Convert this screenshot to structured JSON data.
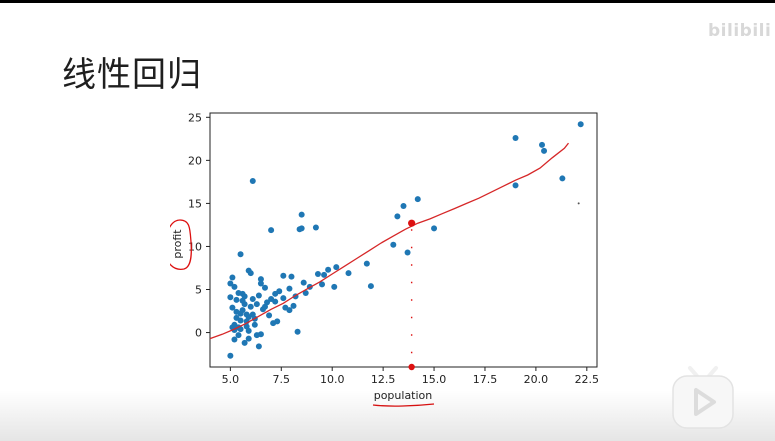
{
  "slide": {
    "title": "线性回归"
  },
  "watermark": {
    "text": "bilibili"
  },
  "chart_data": {
    "type": "scatter",
    "xlabel": "population",
    "ylabel": "profit",
    "xlim": [
      4.0,
      23.0
    ],
    "ylim": [
      -4.0,
      25.5
    ],
    "xticks": [
      "5.0",
      "7.5",
      "10.0",
      "12.5",
      "15.0",
      "17.5",
      "20.0",
      "22.5"
    ],
    "yticks": [
      "0",
      "5",
      "10",
      "15",
      "20",
      "25"
    ],
    "grid": false,
    "point_color": "#1f77b4",
    "line_color": "#d62728",
    "annotation_color": "#dd1111",
    "points": [
      [
        6.1,
        17.6
      ],
      [
        5.5,
        9.1
      ],
      [
        8.5,
        13.7
      ],
      [
        7.0,
        11.9
      ],
      [
        8.4,
        12.0
      ],
      [
        5.7,
        3.3
      ],
      [
        6.4,
        4.3
      ],
      [
        5.1,
        6.4
      ],
      [
        5.0,
        5.7
      ],
      [
        6.5,
        6.2
      ],
      [
        5.9,
        7.2
      ],
      [
        5.4,
        0.6
      ],
      [
        6.3,
        3.3
      ],
      [
        5.9,
        1.8
      ],
      [
        7.2,
        3.6
      ],
      [
        5.8,
        2.1
      ],
      [
        7.4,
        4.8
      ],
      [
        5.5,
        2.2
      ],
      [
        5.2,
        5.3
      ],
      [
        5.1,
        0.6
      ],
      [
        5.3,
        3.8
      ],
      [
        6.0,
        3.0
      ],
      [
        5.6,
        4.5
      ],
      [
        6.2,
        0.9
      ],
      [
        5.9,
        -0.7
      ],
      [
        5.0,
        -2.7
      ],
      [
        5.4,
        -0.3
      ],
      [
        5.2,
        0.3
      ],
      [
        6.8,
        3.5
      ],
      [
        7.6,
        6.6
      ],
      [
        7.9,
        5.1
      ],
      [
        8.3,
        0.1
      ],
      [
        9.3,
        6.8
      ],
      [
        9.8,
        7.3
      ],
      [
        10.2,
        7.6
      ],
      [
        9.5,
        5.6
      ],
      [
        8.9,
        5.3
      ],
      [
        11.7,
        8.0
      ],
      [
        11.9,
        5.4
      ],
      [
        10.8,
        6.9
      ],
      [
        13.2,
        13.5
      ],
      [
        13.5,
        14.7
      ],
      [
        14.2,
        15.5
      ],
      [
        13.9,
        12.7
      ],
      [
        15.0,
        12.1
      ],
      [
        13.7,
        9.3
      ],
      [
        13.0,
        10.2
      ],
      [
        19.0,
        22.6
      ],
      [
        20.3,
        21.8
      ],
      [
        20.4,
        21.1
      ],
      [
        22.2,
        24.2
      ],
      [
        21.3,
        17.9
      ],
      [
        19.0,
        17.1
      ],
      [
        8.5,
        12.1
      ],
      [
        9.2,
        12.2
      ],
      [
        6.5,
        5.7
      ],
      [
        7.2,
        4.5
      ],
      [
        6.7,
        5.2
      ],
      [
        5.7,
        4.2
      ],
      [
        6.1,
        3.9
      ],
      [
        5.3,
        2.4
      ],
      [
        5.5,
        1.4
      ],
      [
        5.8,
        0.7
      ],
      [
        6.6,
        2.7
      ],
      [
        7.0,
        3.9
      ],
      [
        7.6,
        4.0
      ],
      [
        8.0,
        6.5
      ],
      [
        8.6,
        5.8
      ],
      [
        5.3,
        1.7
      ],
      [
        5.6,
        3.7
      ],
      [
        5.2,
        0.9
      ],
      [
        6.1,
        2.1
      ],
      [
        6.3,
        -0.3
      ],
      [
        5.7,
        -1.2
      ],
      [
        6.4,
        -1.6
      ],
      [
        7.1,
        1.1
      ],
      [
        7.7,
        2.9
      ],
      [
        5.4,
        4.6
      ],
      [
        6.0,
        6.9
      ],
      [
        6.7,
        3.0
      ],
      [
        8.2,
        4.2
      ],
      [
        8.7,
        4.6
      ],
      [
        5.1,
        2.9
      ],
      [
        5.8,
        1.3
      ],
      [
        6.9,
        2.0
      ],
      [
        7.3,
        1.3
      ],
      [
        5.6,
        2.6
      ],
      [
        5.9,
        0.2
      ],
      [
        6.5,
        -0.2
      ],
      [
        5.0,
        4.1
      ],
      [
        7.9,
        2.6
      ],
      [
        8.1,
        3.1
      ],
      [
        5.5,
        0.4
      ],
      [
        5.2,
        -0.8
      ],
      [
        6.2,
        1.6
      ],
      [
        9.6,
        6.7
      ],
      [
        10.1,
        5.3
      ]
    ],
    "line": [
      [
        4.0,
        -0.7
      ],
      [
        4.6,
        -0.2
      ],
      [
        5.2,
        0.4
      ],
      [
        5.8,
        1.1
      ],
      [
        6.4,
        1.9
      ],
      [
        7.0,
        2.7
      ],
      [
        7.6,
        3.4
      ],
      [
        8.2,
        4.3
      ],
      [
        8.8,
        5.1
      ],
      [
        9.4,
        5.9
      ],
      [
        10.0,
        6.8
      ],
      [
        10.6,
        7.7
      ],
      [
        11.2,
        8.6
      ],
      [
        11.8,
        9.5
      ],
      [
        12.4,
        10.4
      ],
      [
        13.0,
        11.2
      ],
      [
        13.6,
        12.0
      ],
      [
        14.2,
        12.7
      ],
      [
        14.8,
        13.2
      ],
      [
        15.4,
        13.8
      ],
      [
        16.0,
        14.4
      ],
      [
        16.6,
        15.0
      ],
      [
        17.2,
        15.6
      ],
      [
        17.8,
        16.3
      ],
      [
        18.4,
        17.0
      ],
      [
        19.0,
        17.7
      ],
      [
        19.6,
        18.3
      ],
      [
        20.2,
        19.1
      ],
      [
        20.8,
        20.3
      ],
      [
        21.4,
        21.4
      ],
      [
        21.6,
        22.0
      ]
    ],
    "highlight_point": [
      13.9,
      12.7
    ],
    "bottom_marker": [
      13.9,
      -4.0
    ],
    "guide_x": 13.9,
    "stray_point": [
      22.1,
      15.0
    ]
  }
}
